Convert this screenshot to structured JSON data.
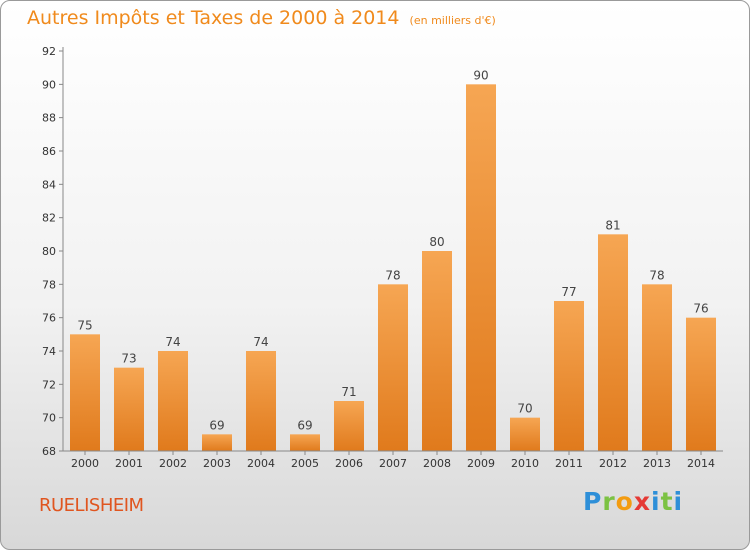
{
  "title": "Autres Impôts et Taxes de 2000 à 2014",
  "subtitle": "(en milliers d'€)",
  "commune": "RUELISHEIM",
  "logo": [
    "P",
    "r",
    "o",
    "x",
    "i",
    "t",
    "i"
  ],
  "colors": {
    "bar_top": "#f6a653",
    "bar_bottom": "#e07a1c",
    "title": "#f08a1c",
    "commune": "#e0551f"
  },
  "chart_data": {
    "type": "bar",
    "categories": [
      "2000",
      "2001",
      "2002",
      "2003",
      "2004",
      "2005",
      "2006",
      "2007",
      "2008",
      "2009",
      "2010",
      "2011",
      "2012",
      "2013",
      "2014"
    ],
    "values": [
      75,
      73,
      74,
      69,
      74,
      69,
      71,
      78,
      80,
      90,
      70,
      77,
      81,
      78,
      76
    ],
    "ylim": [
      68,
      92
    ],
    "yticks": [
      68,
      70,
      72,
      74,
      76,
      78,
      80,
      82,
      84,
      86,
      88,
      90,
      92
    ],
    "grid": false,
    "data_labels": true
  }
}
